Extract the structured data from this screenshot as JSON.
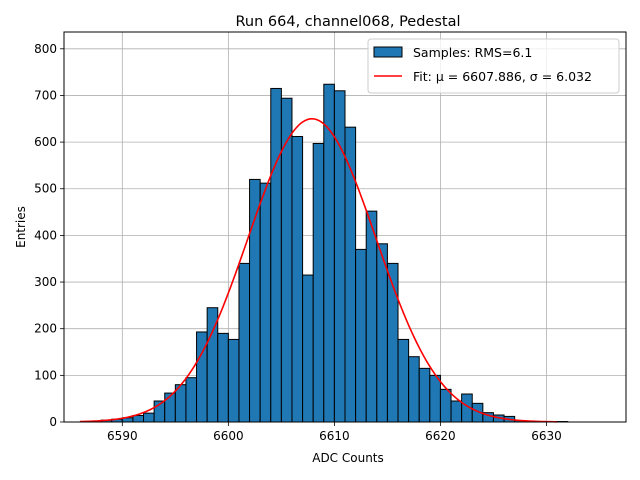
{
  "chart_data": {
    "type": "bar",
    "title": "Run 664, channel068, Pedestal",
    "xlabel": "ADC Counts",
    "ylabel": "Entries",
    "xlim": [
      6584.5,
      6637.5
    ],
    "ylim": [
      0,
      836
    ],
    "xticks": [
      6590,
      6600,
      6610,
      6620,
      6630
    ],
    "yticks": [
      0,
      100,
      200,
      300,
      400,
      500,
      600,
      700,
      800
    ],
    "grid": true,
    "legend_position": "top-right",
    "bin_width": 1,
    "histogram": {
      "name": "Samples: RMS=6.1",
      "color": "#1f77b4",
      "edgecolor": "#000000",
      "bin_left_edges": [
        6587,
        6588,
        6589,
        6590,
        6591,
        6592,
        6593,
        6594,
        6595,
        6596,
        6597,
        6598,
        6599,
        6600,
        6601,
        6602,
        6603,
        6604,
        6605,
        6606,
        6607,
        6608,
        6609,
        6610,
        6611,
        6612,
        6613,
        6614,
        6615,
        6616,
        6617,
        6618,
        6619,
        6620,
        6621,
        6622,
        6623,
        6624,
        6625,
        6626,
        6627,
        6628,
        6629,
        6630,
        6631,
        6632,
        6633,
        6634,
        6635,
        6636
      ],
      "counts": [
        2,
        4,
        6,
        9,
        14,
        19,
        45,
        62,
        80,
        95,
        193,
        245,
        190,
        177,
        340,
        520,
        512,
        715,
        694,
        612,
        315,
        597,
        724,
        710,
        632,
        370,
        452,
        382,
        340,
        177,
        140,
        115,
        100,
        70,
        45,
        60,
        40,
        20,
        15,
        12,
        3,
        2,
        1,
        1,
        1,
        0,
        0,
        0,
        0,
        0
      ]
    },
    "fit": {
      "name": "Fit: μ = 6607.886, σ = 6.032",
      "color": "#ff0000",
      "mu": 6607.886,
      "sigma": 6.032,
      "amplitude": 650,
      "x_range": [
        6586,
        6631
      ]
    }
  }
}
